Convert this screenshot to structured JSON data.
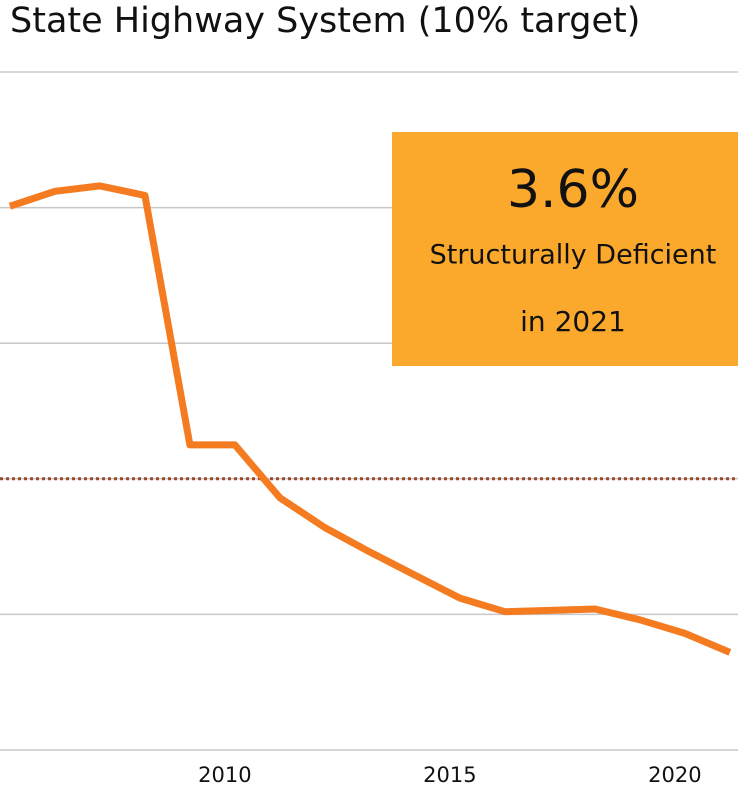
{
  "chart_data": {
    "type": "line",
    "title": "State Highway System (10% target)",
    "x": [
      2005,
      2006,
      2007,
      2008,
      2009,
      2010,
      2011,
      2012,
      2013,
      2014,
      2015,
      2016,
      2017,
      2018,
      2019,
      2020,
      2021
    ],
    "series": [
      {
        "name": "State Highway System",
        "color": "#f47b20",
        "values": [
          20.05,
          20.6,
          20.8,
          20.45,
          11.25,
          11.25,
          9.3,
          8.2,
          7.3,
          6.45,
          5.6,
          5.1,
          5.15,
          5.2,
          4.8,
          4.3,
          3.6
        ]
      }
    ],
    "xlim": [
      2004.78,
      2021.18
    ],
    "xticks": [
      2010,
      2015,
      2020
    ],
    "ylim": [
      0,
      25
    ],
    "yticks": [
      0,
      5,
      10,
      15,
      20,
      25
    ],
    "grid": true,
    "target": 10,
    "target_color": "#9b4a2a",
    "annotation": {
      "lines": [
        "3.6%",
        "Structurally Deficient",
        "in 2021"
      ],
      "color": "#fba92c"
    }
  }
}
